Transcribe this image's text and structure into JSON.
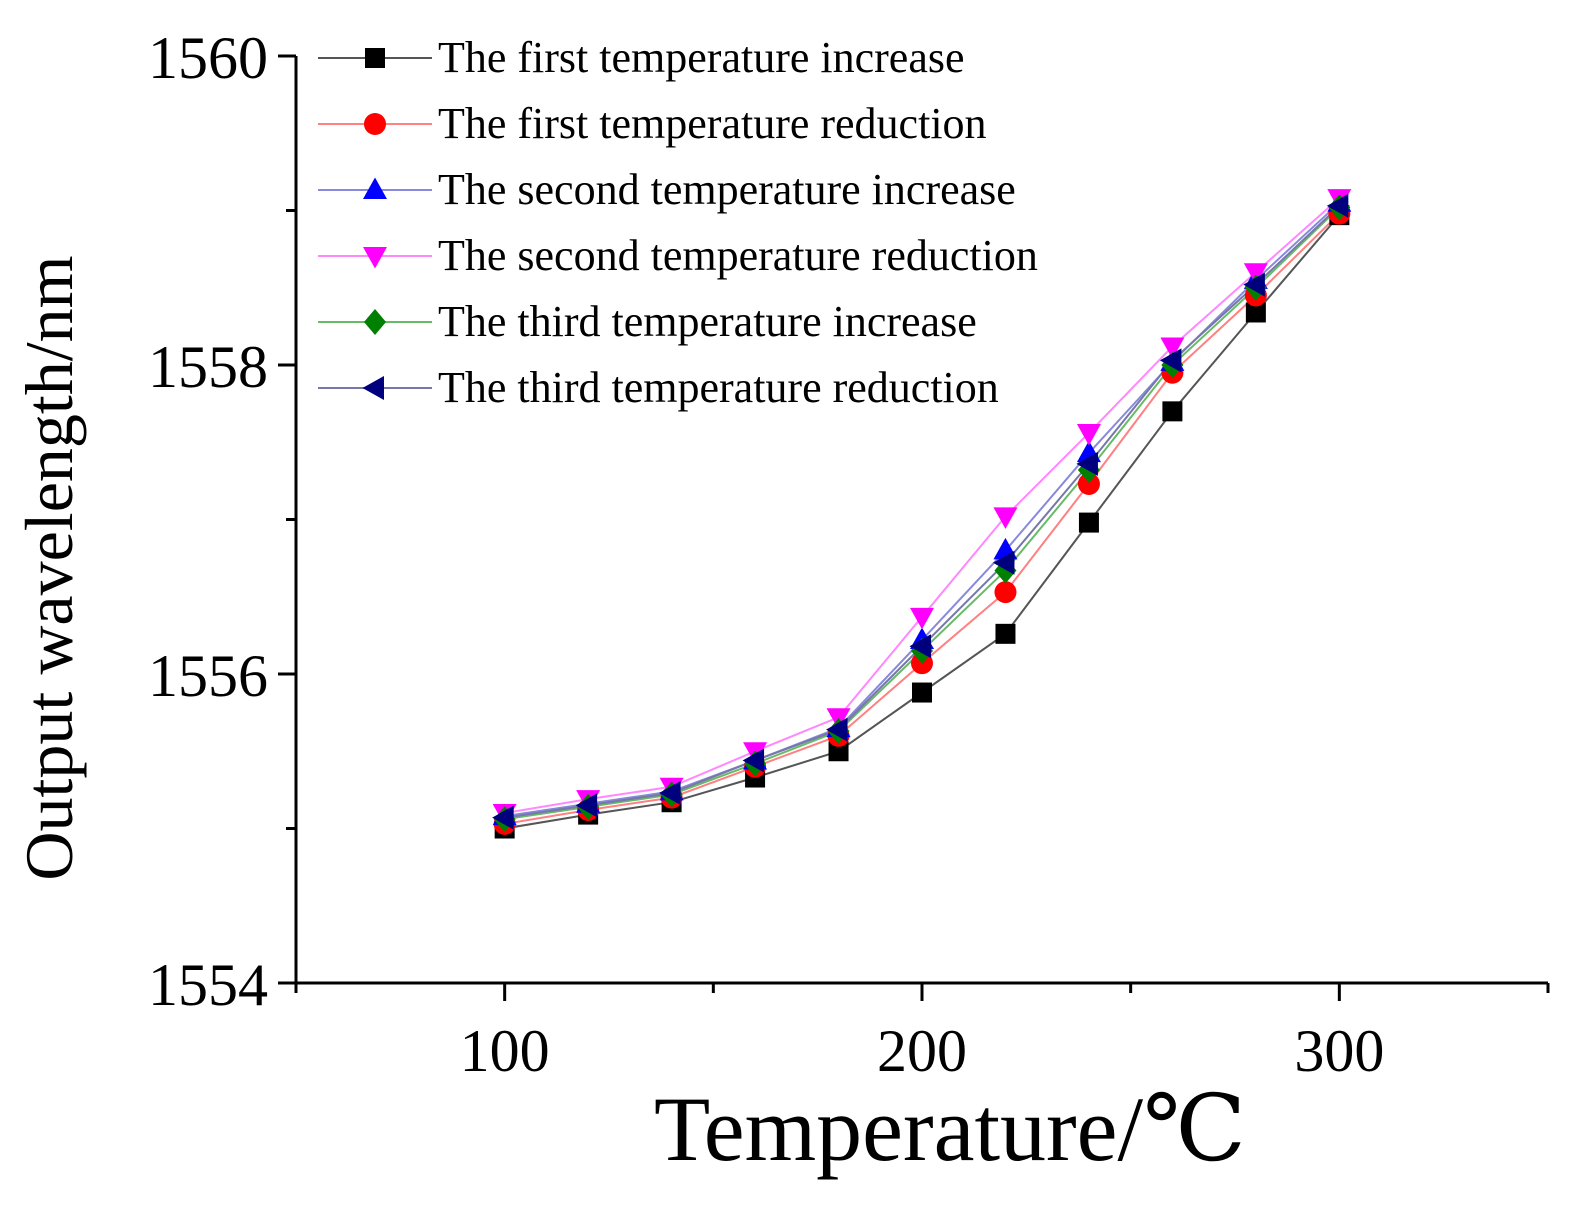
{
  "chart_data": {
    "type": "line",
    "title": "",
    "xlabel": "Temperature/℃",
    "ylabel": "Output wavelength/nm",
    "xlim": [
      50,
      350
    ],
    "ylim": [
      1554,
      1560
    ],
    "x_ticks": [
      100,
      200,
      300
    ],
    "x_tick_labels": [
      "100",
      "200",
      "300"
    ],
    "y_ticks": [
      1554,
      1556,
      1558,
      1560
    ],
    "y_tick_labels": [
      "1554",
      "1556",
      "1558",
      "1560"
    ],
    "legend_position": "top-left",
    "x": [
      100,
      120,
      140,
      160,
      180,
      200,
      220,
      240,
      260,
      280,
      300
    ],
    "series": [
      {
        "name": "The first temperature increase",
        "color": "#000000",
        "line_color": "#555555",
        "marker": "square",
        "values": [
          1555.0,
          1555.09,
          1555.17,
          1555.33,
          1555.5,
          1555.88,
          1556.26,
          1556.98,
          1557.7,
          1558.34,
          1558.97
        ]
      },
      {
        "name": "The first temperature reduction",
        "color": "#ff0000",
        "line_color": "#ff8080",
        "marker": "circle",
        "values": [
          1555.03,
          1555.12,
          1555.2,
          1555.4,
          1555.6,
          1556.07,
          1556.53,
          1557.23,
          1557.95,
          1558.45,
          1558.98
        ]
      },
      {
        "name": "The second temperature increase",
        "color": "#0000ff",
        "line_color": "#8888dd",
        "marker": "triangle-up",
        "values": [
          1555.08,
          1555.16,
          1555.24,
          1555.44,
          1555.65,
          1556.22,
          1556.8,
          1557.43,
          1558.02,
          1558.55,
          1559.05
        ]
      },
      {
        "name": "The second temperature reduction",
        "color": "#ff00ff",
        "line_color": "#ff88ff",
        "marker": "triangle-down",
        "values": [
          1555.1,
          1555.19,
          1555.27,
          1555.5,
          1555.72,
          1556.37,
          1557.02,
          1557.56,
          1558.12,
          1558.6,
          1559.08
        ]
      },
      {
        "name": "The third temperature increase",
        "color": "#008000",
        "line_color": "#66bb66",
        "marker": "diamond",
        "values": [
          1555.06,
          1555.14,
          1555.22,
          1555.42,
          1555.63,
          1556.15,
          1556.67,
          1557.32,
          1558.0,
          1558.5,
          1559.02
        ]
      },
      {
        "name": "The third temperature reduction",
        "color": "#00007f",
        "line_color": "#7777aa",
        "marker": "triangle-left",
        "values": [
          1555.07,
          1555.15,
          1555.23,
          1555.44,
          1555.64,
          1556.18,
          1556.72,
          1557.36,
          1558.03,
          1558.52,
          1559.03
        ]
      }
    ]
  }
}
